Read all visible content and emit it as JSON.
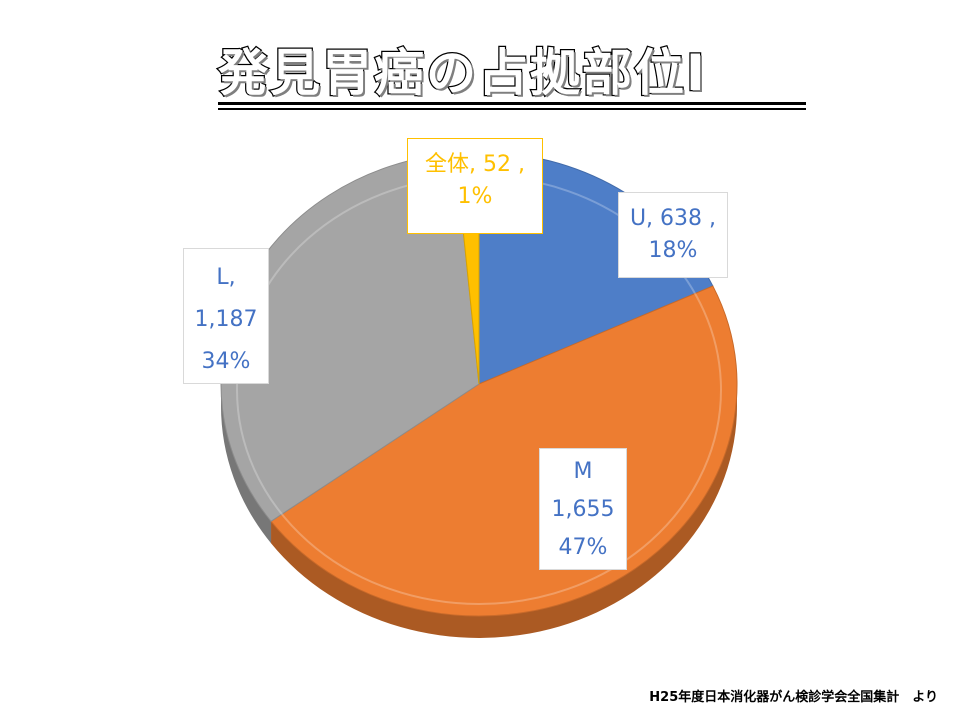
{
  "slide": {
    "title": "発見胃癌の占拠部位Ⅰ",
    "source": "H25年度日本消化器がん検診学会全国集計　より"
  },
  "chart_data": {
    "type": "pie",
    "title": "",
    "series": [
      {
        "name": "U",
        "value": 638,
        "value_label": "638",
        "percent": "18%",
        "color": "#4e7ec8"
      },
      {
        "name": "M",
        "value": 1655,
        "value_label": "1,655",
        "percent": "47%",
        "color": "#ed7d31"
      },
      {
        "name": "L",
        "value": 1187,
        "value_label": "1,187",
        "percent": "34%",
        "color": "#a5a5a5"
      },
      {
        "name": "全体",
        "value": 52,
        "value_label": "52",
        "percent": "1%",
        "color": "#ffc000"
      }
    ],
    "labels": {
      "U": [
        "U, 638 ,",
        "18%"
      ],
      "M": [
        "M",
        "1,655",
        "47%"
      ],
      "L": [
        "L,",
        "1,187",
        "34%"
      ],
      "全体": [
        "全体, 52 ,",
        "1%"
      ]
    },
    "label_colors": {
      "U": "#4472c4",
      "M": "#4472c4",
      "L": "#4472c4",
      "全体": "#ffc000"
    },
    "style": "3d-pie",
    "legend": "none"
  }
}
